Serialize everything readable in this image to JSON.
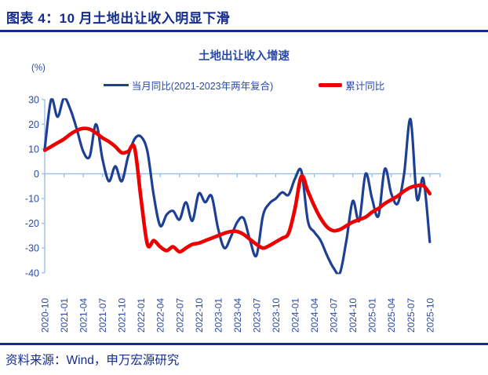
{
  "header": {
    "title": "图表 4：10 月土地出让收入明显下滑"
  },
  "footer": {
    "source": "资料来源：Wind，申万宏源研究"
  },
  "colors": {
    "header_navy": "#142c8c",
    "chart_text_blue": "#2b4aa6",
    "axis_light_blue": "#9cc2e8",
    "series_blue": "#1e4094",
    "series_red": "#ed0000"
  },
  "chart_data": {
    "type": "line",
    "title": "土地出让收入增速",
    "unit": "(%)",
    "ylim": [
      -40,
      30
    ],
    "y_ticks": [
      30,
      20,
      10,
      0,
      -10,
      -20,
      -30,
      -40
    ],
    "x_tick_every_n_months": 3,
    "grid": "zero-line-only",
    "legend_position": "top-center",
    "axis_color": "#9cc2e8",
    "text_color": "#2b4aa6",
    "months": [
      "2020-10",
      "2020-11",
      "2020-12",
      "2021-01",
      "2021-02",
      "2021-03",
      "2021-04",
      "2021-05",
      "2021-06",
      "2021-07",
      "2021-08",
      "2021-09",
      "2021-10",
      "2021-11",
      "2021-12",
      "2022-01",
      "2022-02",
      "2022-03",
      "2022-04",
      "2022-05",
      "2022-06",
      "2022-07",
      "2022-08",
      "2022-09",
      "2022-10",
      "2022-11",
      "2022-12",
      "2023-01",
      "2023-02",
      "2023-03",
      "2023-04",
      "2023-05",
      "2023-06",
      "2023-07",
      "2023-08",
      "2023-09",
      "2023-10",
      "2023-11",
      "2023-12",
      "2024-01",
      "2024-02",
      "2024-03",
      "2024-04",
      "2024-05",
      "2024-06",
      "2024-07",
      "2024-08",
      "2024-09",
      "2024-10",
      "2024-11",
      "2024-12",
      "2025-01",
      "2025-02",
      "2025-03",
      "2025-04",
      "2025-05",
      "2025-06",
      "2025-07",
      "2025-08",
      "2025-09",
      "2025-10"
    ],
    "series": [
      {
        "key": "monthly-yoy",
        "name": "当月同比(2021-2023年两年复合)",
        "color": "#1e4094",
        "width": 3.2,
        "values": [
          10,
          30,
          23,
          30.5,
          26,
          18,
          9,
          7,
          20,
          6,
          -3,
          3,
          -3,
          7,
          14,
          15,
          9,
          -9,
          -21,
          -16.5,
          -15,
          -18.5,
          -11.5,
          -19,
          -8,
          -11.5,
          -9,
          -22,
          -30,
          -25.5,
          -19.5,
          -18,
          -27,
          -33,
          -17,
          -12,
          -10,
          -7.5,
          -8.5,
          -2,
          1,
          -19,
          -23.5,
          -27,
          -33,
          -38,
          -40,
          -27,
          -11,
          -19,
          0,
          -10,
          -17,
          2,
          -8,
          -12,
          0,
          22,
          -10,
          -2,
          -27.5
        ]
      },
      {
        "key": "cumulative-yoy",
        "name": "累计同比",
        "color": "#ed0000",
        "width": 4.6,
        "values": [
          9.5,
          11,
          12.5,
          14,
          16,
          17.5,
          18.3,
          18,
          16.5,
          14.5,
          13,
          11,
          8.5,
          9,
          10.5,
          -10,
          -28.5,
          -27,
          -29.5,
          -31,
          -29.5,
          -31.5,
          -30,
          -28.5,
          -28,
          -27,
          -26,
          -25,
          -24,
          -23.3,
          -23.3,
          -24.5,
          -26.5,
          -28.5,
          -30,
          -29,
          -27.5,
          -26,
          -24,
          -14,
          -1,
          -7,
          -13,
          -18,
          -21.5,
          -23,
          -22.5,
          -21,
          -19.5,
          -18.5,
          -17.5,
          -15.5,
          -14,
          -12,
          -10.5,
          -9,
          -7,
          -5.5,
          -4.8,
          -4.8,
          -8
        ]
      }
    ]
  }
}
